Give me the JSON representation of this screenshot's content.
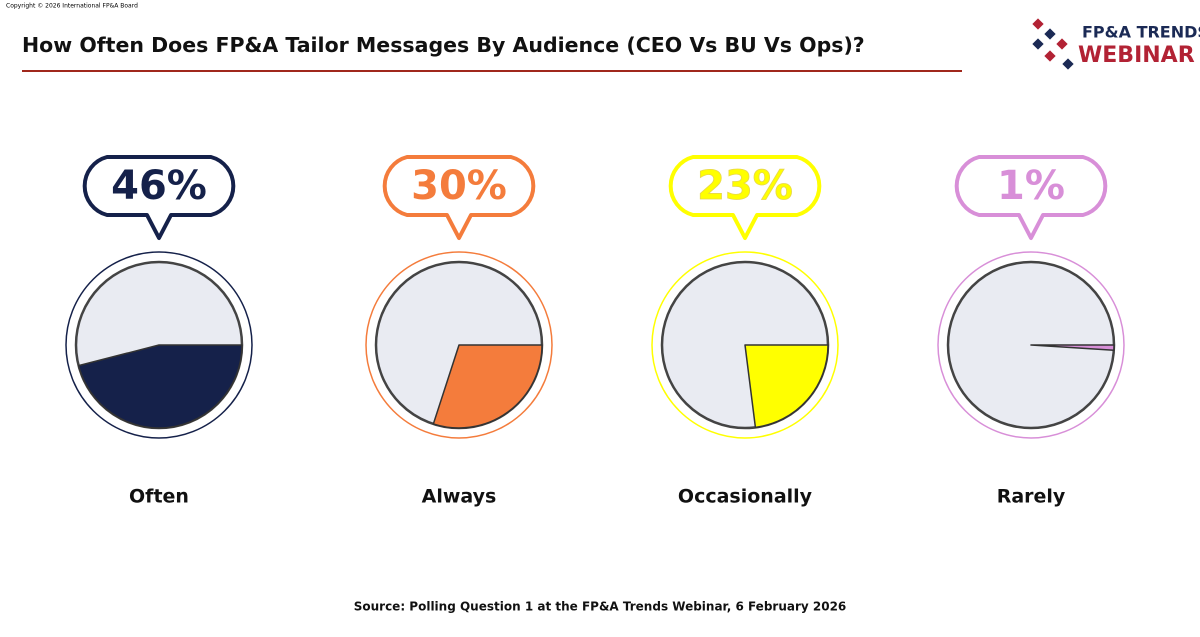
{
  "header": {
    "copyright": "Copyright © 2026 International FP&A Board",
    "title": "How Often Does FP&A Tailor Messages By Audience (CEO Vs BU Vs Ops)?",
    "logo_top": "FP&A TRENDS",
    "logo_bottom": "WEBINAR"
  },
  "chart_data": [
    {
      "type": "pie",
      "categories": [
        "Often"
      ],
      "values": [
        46
      ],
      "value_labels": [
        "46%"
      ],
      "color": "#15214a"
    },
    {
      "type": "pie",
      "categories": [
        "Always"
      ],
      "values": [
        30
      ],
      "value_labels": [
        "30%"
      ],
      "color": "#f47c3c"
    },
    {
      "type": "pie",
      "categories": [
        "Occasionally"
      ],
      "values": [
        23
      ],
      "value_labels": [
        "23%"
      ],
      "color": "#ffff00"
    },
    {
      "type": "pie",
      "categories": [
        "Rarely"
      ],
      "values": [
        1
      ],
      "value_labels": [
        "1%"
      ],
      "color": "#d88fd8"
    }
  ],
  "footer": {
    "source": "Source: Polling Question 1 at the FP&A Trends Webinar, 6 February 2026"
  }
}
